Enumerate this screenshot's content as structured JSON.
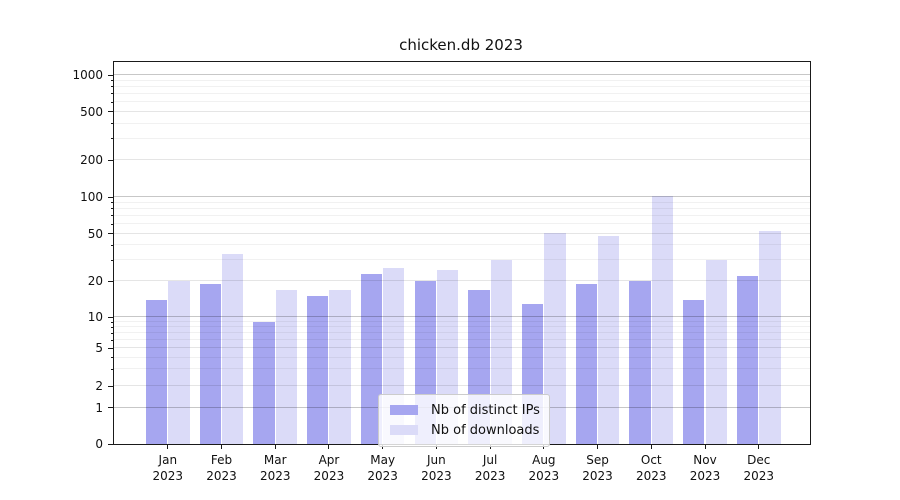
{
  "title": "chicken.db 2023",
  "chart_data": {
    "type": "bar",
    "title": "chicken.db 2023",
    "categories": [
      "Jan 2023",
      "Feb 2023",
      "Mar 2023",
      "Apr 2023",
      "May 2023",
      "Jun 2023",
      "Jul 2023",
      "Aug 2023",
      "Sep 2023",
      "Oct 2023",
      "Nov 2023",
      "Dec 2023"
    ],
    "series": [
      {
        "name": "Nb of distinct IPs",
        "color": "#a6a6f0",
        "values": [
          14,
          19,
          9,
          15,
          23,
          20,
          17,
          13,
          19,
          20,
          14,
          22
        ]
      },
      {
        "name": "Nb of downloads",
        "color": "#dbdbf8",
        "values": [
          20,
          34,
          17,
          17,
          26,
          25,
          30,
          51,
          48,
          102,
          30,
          53
        ]
      }
    ],
    "yticks": [
      0,
      1,
      2,
      5,
      10,
      20,
      50,
      100,
      200,
      500,
      1000
    ],
    "yscale": "symlog",
    "ylim": [
      0,
      1300
    ],
    "xlabel": "",
    "ylabel": "",
    "grid": "horizontal, log minor gridlines",
    "legend_position": "lower center"
  }
}
